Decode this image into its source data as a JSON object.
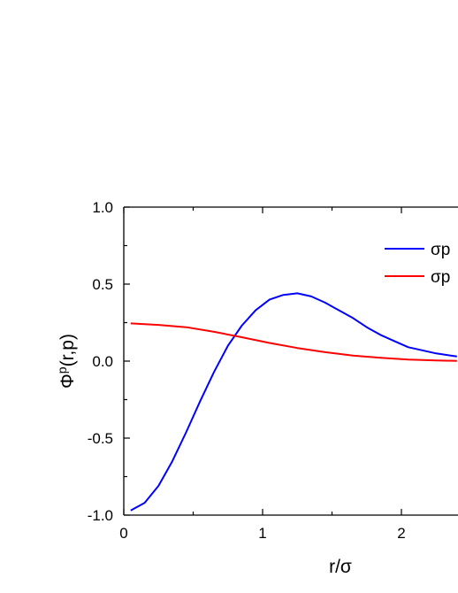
{
  "chart_data": {
    "type": "line",
    "xlabel": "r/σ",
    "ylabel_main": "Φ",
    "ylabel_sup": "p",
    "ylabel_rest": "(r,p)",
    "xlim": [
      0,
      2.4
    ],
    "ylim": [
      -1.0,
      1.0
    ],
    "x_ticks": [
      0,
      1,
      2
    ],
    "x_tick_labels": [
      "0",
      "1",
      "2"
    ],
    "y_ticks": [
      -1.0,
      -0.5,
      0.0,
      0.5,
      1.0
    ],
    "y_tick_labels": [
      "-1.0",
      "-0.5",
      "0.0",
      "0.5",
      "1.0"
    ],
    "grid": false,
    "legend_position": "top-right",
    "series": [
      {
        "name": "σp",
        "color": "#0000ff",
        "x": [
          0.05,
          0.15,
          0.25,
          0.35,
          0.45,
          0.55,
          0.65,
          0.75,
          0.85,
          0.95,
          1.05,
          1.15,
          1.25,
          1.35,
          1.45,
          1.55,
          1.65,
          1.75,
          1.85,
          1.95,
          2.05,
          2.15,
          2.25,
          2.4
        ],
        "y": [
          -0.97,
          -0.92,
          -0.81,
          -0.65,
          -0.46,
          -0.26,
          -0.07,
          0.1,
          0.23,
          0.33,
          0.4,
          0.43,
          0.44,
          0.42,
          0.38,
          0.33,
          0.28,
          0.22,
          0.17,
          0.13,
          0.09,
          0.07,
          0.05,
          0.03
        ]
      },
      {
        "name": "σp",
        "color": "#ff0000",
        "x": [
          0.05,
          0.25,
          0.45,
          0.65,
          0.85,
          1.05,
          1.25,
          1.45,
          1.65,
          1.85,
          2.05,
          2.25,
          2.4
        ],
        "y": [
          0.245,
          0.235,
          0.22,
          0.19,
          0.155,
          0.118,
          0.085,
          0.058,
          0.036,
          0.021,
          0.01,
          0.004,
          0.002
        ]
      }
    ]
  }
}
